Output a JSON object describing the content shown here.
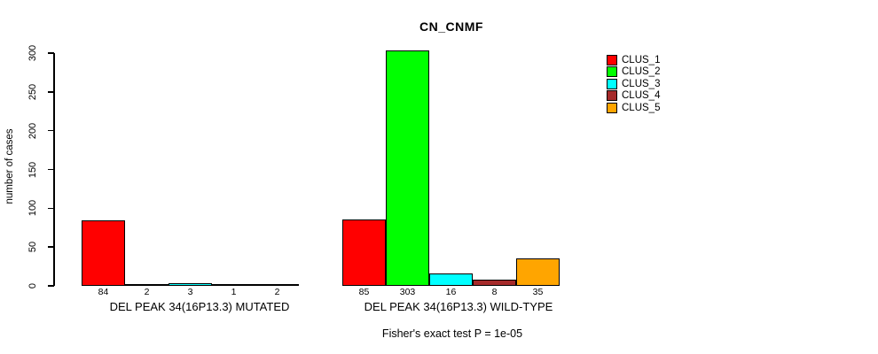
{
  "chart_data": {
    "type": "bar",
    "title": "CN_CNMF",
    "ylabel": "number of cases",
    "xlabel": "",
    "ylim": [
      0,
      300
    ],
    "yticks": [
      0,
      50,
      100,
      150,
      200,
      250,
      300
    ],
    "grid": false,
    "legend_position": "right",
    "bar_value_labels_shown": true,
    "series": [
      {
        "name": "CLUS_1",
        "color": "#FF0000"
      },
      {
        "name": "CLUS_2",
        "color": "#00FF00"
      },
      {
        "name": "CLUS_3",
        "color": "#00FFFF"
      },
      {
        "name": "CLUS_4",
        "color": "#A52A2A"
      },
      {
        "name": "CLUS_5",
        "color": "#FFA500"
      }
    ],
    "groups": [
      {
        "label": "DEL PEAK 34(16P13.3) MUTATED",
        "values": [
          84,
          2,
          3,
          1,
          2
        ]
      },
      {
        "label": "DEL PEAK 34(16P13.3) WILD-TYPE",
        "values": [
          85,
          303,
          16,
          8,
          35
        ]
      }
    ],
    "annotation": "Fisher's exact test P = 1e-05"
  },
  "colors": {
    "background": "#FFFFFF",
    "axis": "#000000",
    "text": "#000000"
  }
}
